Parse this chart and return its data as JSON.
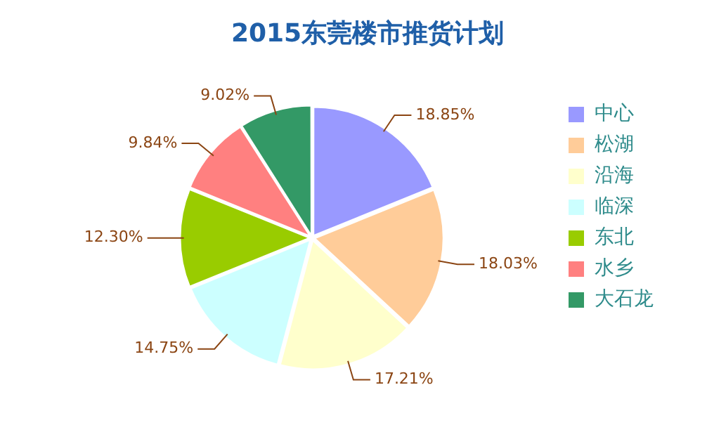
{
  "chart_data": {
    "type": "pie",
    "title": "2015东莞楼市推货计划",
    "categories": [
      "中心",
      "松湖",
      "沿海",
      "临深",
      "东北",
      "水乡",
      "大石龙"
    ],
    "values": [
      18.85,
      18.03,
      17.21,
      14.75,
      12.3,
      9.84,
      9.02
    ],
    "colors": [
      "#9999ff",
      "#ffcc99",
      "#ffffcc",
      "#ccffff",
      "#99cc00",
      "#ff8080",
      "#339966"
    ],
    "value_labels": [
      "18.85%",
      "18.03%",
      "17.21%",
      "14.75%",
      "12.30%",
      "9.84%",
      "9.02%"
    ],
    "legend": "right"
  }
}
